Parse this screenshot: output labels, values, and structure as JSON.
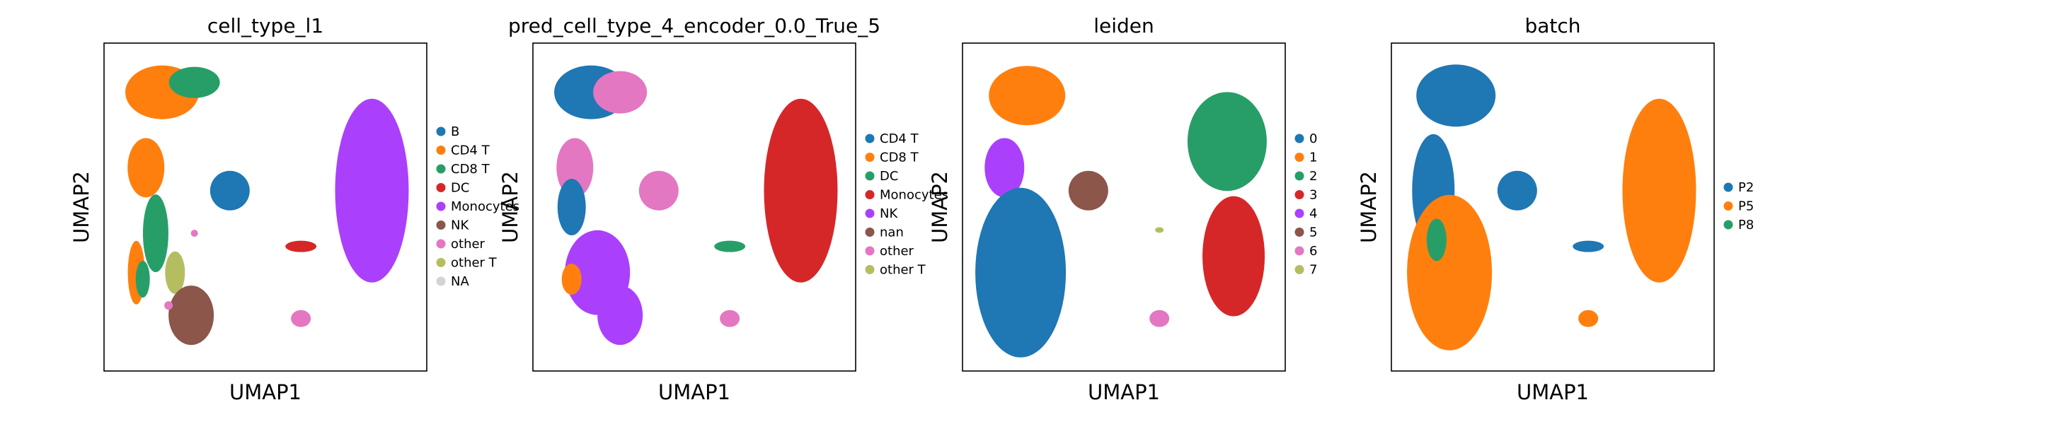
{
  "chart_data": [
    {
      "type": "scatter",
      "title": "cell_type_l1",
      "xlabel": "UMAP1",
      "ylabel": "UMAP2",
      "legend_position": "right",
      "grid": false,
      "categories": [
        {
          "name": "B",
          "color": "#1f77b4"
        },
        {
          "name": "CD4 T",
          "color": "#ff7f0e"
        },
        {
          "name": "CD8 T",
          "color": "#279e68"
        },
        {
          "name": "DC",
          "color": "#d62728"
        },
        {
          "name": "Monocytes",
          "color": "#aa40fc"
        },
        {
          "name": "NK",
          "color": "#8c564b"
        },
        {
          "name": "other",
          "color": "#e377c2"
        },
        {
          "name": "other T",
          "color": "#b5bd61"
        },
        {
          "name": "NA",
          "color": "#d3d3d3"
        }
      ],
      "clusters": [
        {
          "name": "CD4 T",
          "x": 0.18,
          "y": 0.85
        },
        {
          "name": "CD8 T",
          "x": 0.28,
          "y": 0.88
        },
        {
          "name": "CD4 T",
          "x": 0.13,
          "y": 0.62
        },
        {
          "name": "CD8 T",
          "x": 0.16,
          "y": 0.42
        },
        {
          "name": "CD4 T",
          "x": 0.1,
          "y": 0.3
        },
        {
          "name": "other T",
          "x": 0.22,
          "y": 0.3
        },
        {
          "name": "CD8 T",
          "x": 0.12,
          "y": 0.28
        },
        {
          "name": "NK",
          "x": 0.27,
          "y": 0.17
        },
        {
          "name": "B",
          "x": 0.39,
          "y": 0.55
        },
        {
          "name": "Monocytes",
          "x": 0.83,
          "y": 0.55
        },
        {
          "name": "DC",
          "x": 0.61,
          "y": 0.38
        },
        {
          "name": "other",
          "x": 0.61,
          "y": 0.16
        },
        {
          "name": "other",
          "x": 0.28,
          "y": 0.42
        },
        {
          "name": "other",
          "x": 0.2,
          "y": 0.2
        }
      ]
    },
    {
      "type": "scatter",
      "title": "pred_cell_type_4_encoder_0.0_True_5",
      "xlabel": "UMAP1",
      "ylabel": "UMAP2",
      "legend_position": "right",
      "grid": false,
      "categories": [
        {
          "name": "CD4 T",
          "color": "#1f77b4"
        },
        {
          "name": "CD8 T",
          "color": "#ff7f0e"
        },
        {
          "name": "DC",
          "color": "#279e68"
        },
        {
          "name": "Monocytes",
          "color": "#d62728"
        },
        {
          "name": "NK",
          "color": "#aa40fc"
        },
        {
          "name": "nan",
          "color": "#8c564b"
        },
        {
          "name": "other",
          "color": "#e377c2"
        },
        {
          "name": "other T",
          "color": "#b5bd61"
        }
      ],
      "clusters": [
        {
          "name": "CD4 T",
          "x": 0.18,
          "y": 0.85
        },
        {
          "name": "other",
          "x": 0.27,
          "y": 0.85
        },
        {
          "name": "other",
          "x": 0.13,
          "y": 0.62
        },
        {
          "name": "CD4 T",
          "x": 0.12,
          "y": 0.5
        },
        {
          "name": "NK",
          "x": 0.2,
          "y": 0.3
        },
        {
          "name": "CD8 T",
          "x": 0.12,
          "y": 0.28
        },
        {
          "name": "NK",
          "x": 0.27,
          "y": 0.17
        },
        {
          "name": "other",
          "x": 0.39,
          "y": 0.55
        },
        {
          "name": "Monocytes",
          "x": 0.83,
          "y": 0.55
        },
        {
          "name": "DC",
          "x": 0.61,
          "y": 0.38
        },
        {
          "name": "other",
          "x": 0.61,
          "y": 0.16
        }
      ]
    },
    {
      "type": "scatter",
      "title": "leiden",
      "xlabel": "UMAP1",
      "ylabel": "UMAP2",
      "legend_position": "right",
      "grid": false,
      "categories": [
        {
          "name": "0",
          "color": "#1f77b4"
        },
        {
          "name": "1",
          "color": "#ff7f0e"
        },
        {
          "name": "2",
          "color": "#279e68"
        },
        {
          "name": "3",
          "color": "#d62728"
        },
        {
          "name": "4",
          "color": "#aa40fc"
        },
        {
          "name": "5",
          "color": "#8c564b"
        },
        {
          "name": "6",
          "color": "#e377c2"
        },
        {
          "name": "7",
          "color": "#b5bd61"
        }
      ],
      "clusters": [
        {
          "name": "1",
          "x": 0.2,
          "y": 0.84
        },
        {
          "name": "4",
          "x": 0.13,
          "y": 0.62
        },
        {
          "name": "0",
          "x": 0.18,
          "y": 0.3
        },
        {
          "name": "5",
          "x": 0.39,
          "y": 0.55
        },
        {
          "name": "2",
          "x": 0.82,
          "y": 0.7
        },
        {
          "name": "3",
          "x": 0.84,
          "y": 0.35
        },
        {
          "name": "6",
          "x": 0.61,
          "y": 0.16
        },
        {
          "name": "7",
          "x": 0.61,
          "y": 0.43
        }
      ]
    },
    {
      "type": "scatter",
      "title": "batch",
      "xlabel": "UMAP1",
      "ylabel": "UMAP2",
      "legend_position": "right",
      "grid": false,
      "categories": [
        {
          "name": "P2",
          "color": "#1f77b4"
        },
        {
          "name": "P5",
          "color": "#ff7f0e"
        },
        {
          "name": "P8",
          "color": "#279e68"
        }
      ],
      "clusters": [
        {
          "name": "P2",
          "x": 0.2,
          "y": 0.84
        },
        {
          "name": "P2",
          "x": 0.13,
          "y": 0.55
        },
        {
          "name": "P5",
          "x": 0.18,
          "y": 0.3
        },
        {
          "name": "P8",
          "x": 0.14,
          "y": 0.4
        },
        {
          "name": "P2",
          "x": 0.39,
          "y": 0.55
        },
        {
          "name": "P5",
          "x": 0.83,
          "y": 0.55
        },
        {
          "name": "P2",
          "x": 0.61,
          "y": 0.38
        },
        {
          "name": "P5",
          "x": 0.61,
          "y": 0.16
        }
      ]
    }
  ]
}
